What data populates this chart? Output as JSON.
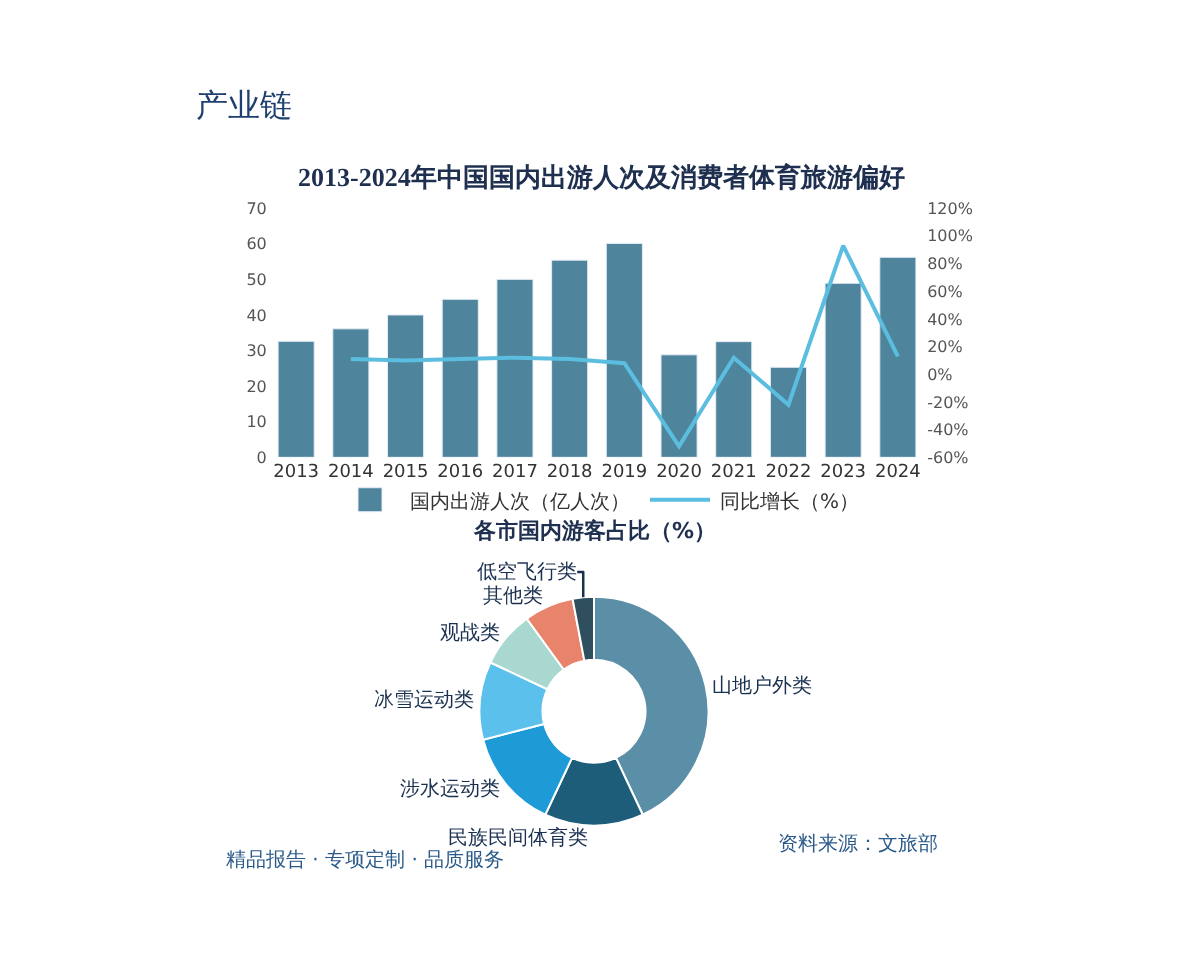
{
  "chart_data": [
    {
      "type": "bar",
      "title": "2013-2024年中国国内出游人次及消费者体育旅游偏好",
      "annotations": [
        "产业链",
        "精品报告 · 专项定制 · 品质服务",
        "资料来源：文旅部"
      ],
      "categories": [
        "2013",
        "2014",
        "2015",
        "2016",
        "2017",
        "2018",
        "2019",
        "2020",
        "2021",
        "2022",
        "2023",
        "2024"
      ],
      "series": [
        {
          "name": "国内出游人次（亿人次）",
          "color": "#4f859c",
          "values": [
            32.6,
            36.1,
            40.0,
            44.4,
            50.0,
            55.4,
            60.1,
            28.8,
            32.5,
            25.3,
            48.9,
            56.2
          ]
        },
        {
          "name": "同比增长（%）",
          "type": "line",
          "axis": "y2",
          "color": "#5bbde0",
          "values": [
            null,
            11,
            10,
            11,
            12,
            11,
            8,
            -52,
            12,
            -22,
            93,
            13
          ]
        }
      ],
      "ylim": [
        0,
        70
      ],
      "yticks": [
        0,
        10,
        20,
        30,
        40,
        50,
        60,
        70
      ],
      "y2lim": [
        -60,
        120
      ],
      "y2ticks": [
        {
          "value": -60,
          "label": "-60%"
        },
        {
          "value": -40,
          "label": "-40%"
        },
        {
          "value": -20,
          "label": "-20%"
        },
        {
          "value": 0,
          "label": "0%"
        },
        {
          "value": 20,
          "label": "20%"
        },
        {
          "value": 40,
          "label": "40%"
        },
        {
          "value": 60,
          "label": "60%"
        },
        {
          "value": 80,
          "label": "80%"
        },
        {
          "value": 100,
          "label": "100%"
        },
        {
          "value": 120,
          "label": "120%"
        }
      ],
      "grid": false,
      "legend": "bottom",
      "marker": "none"
    },
    {
      "type": "donut",
      "title": "各市国内游客占比（%）",
      "categories": [
        "山地户外类",
        "民族民间体育类",
        "涉水运动类",
        "冰雪运动类",
        "观战类",
        "其他类",
        "低空飞行类"
      ],
      "values": [
        43,
        14,
        14,
        11,
        8,
        7,
        3
      ],
      "colors": [
        "#5b8fa8",
        "#1d5d7a",
        "#1e9bd7",
        "#5bc0eb",
        "#a8d8d0",
        "#e8846c",
        "#2f4f5f"
      ]
    }
  ]
}
